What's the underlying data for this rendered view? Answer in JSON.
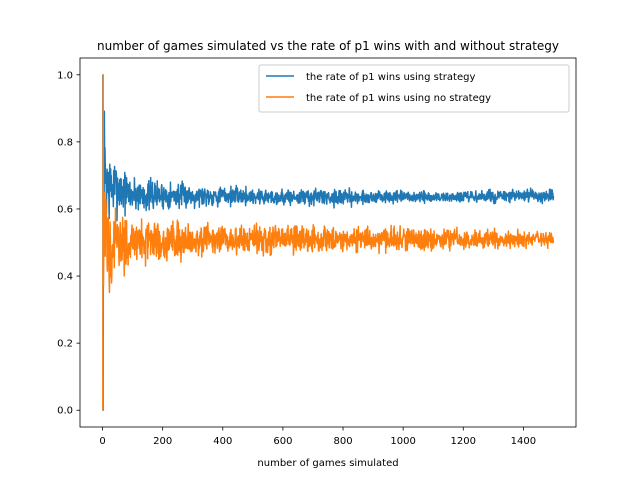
{
  "chart_data": {
    "type": "line",
    "title": "number of games simulated vs the rate of p1 wins with and without strategy",
    "xlabel": "number of games simulated",
    "ylabel": "",
    "xlim": [
      -75,
      1575
    ],
    "ylim": [
      -0.05,
      1.05
    ],
    "xticks": [
      0,
      200,
      400,
      600,
      800,
      1000,
      1200,
      1400
    ],
    "yticks": [
      0.0,
      0.2,
      0.4,
      0.6,
      0.8,
      1.0
    ],
    "xtick_labels": [
      "0",
      "200",
      "400",
      "600",
      "800",
      "1000",
      "1200",
      "1400"
    ],
    "ytick_labels": [
      "0.0",
      "0.2",
      "0.4",
      "0.6",
      "0.8",
      "1.0"
    ],
    "grid": false,
    "legend_position": "top-right",
    "n_points": 1500,
    "series": [
      {
        "name": "the rate of p1 wins using strategy",
        "color": "#1f77b4",
        "mean": 0.63,
        "envelope_x": [
          1,
          3,
          5,
          10,
          20,
          30,
          50,
          75,
          100,
          150,
          200,
          300,
          400,
          600,
          800,
          1000,
          1200,
          1500
        ],
        "envelope_min": [
          0.0,
          0.3,
          0.45,
          0.5,
          0.5,
          0.53,
          0.55,
          0.56,
          0.57,
          0.57,
          0.58,
          0.59,
          0.6,
          0.6,
          0.6,
          0.61,
          0.61,
          0.61
        ],
        "envelope_max": [
          1.0,
          1.0,
          1.0,
          0.9,
          0.83,
          0.8,
          0.78,
          0.74,
          0.72,
          0.71,
          0.7,
          0.69,
          0.68,
          0.67,
          0.67,
          0.66,
          0.66,
          0.67
        ]
      },
      {
        "name": "the rate of p1 wins using no strategy",
        "color": "#ff7f0e",
        "mean": 0.51,
        "envelope_x": [
          1,
          3,
          5,
          10,
          20,
          30,
          50,
          75,
          100,
          150,
          200,
          300,
          400,
          600,
          800,
          1000,
          1200,
          1500
        ],
        "envelope_min": [
          0.0,
          0.0,
          0.2,
          0.29,
          0.3,
          0.34,
          0.36,
          0.38,
          0.4,
          0.41,
          0.42,
          0.44,
          0.44,
          0.45,
          0.46,
          0.46,
          0.47,
          0.48
        ],
        "envelope_max": [
          1.0,
          1.0,
          0.8,
          0.72,
          0.68,
          0.65,
          0.62,
          0.61,
          0.6,
          0.6,
          0.59,
          0.58,
          0.57,
          0.57,
          0.56,
          0.56,
          0.55,
          0.54
        ]
      }
    ]
  }
}
